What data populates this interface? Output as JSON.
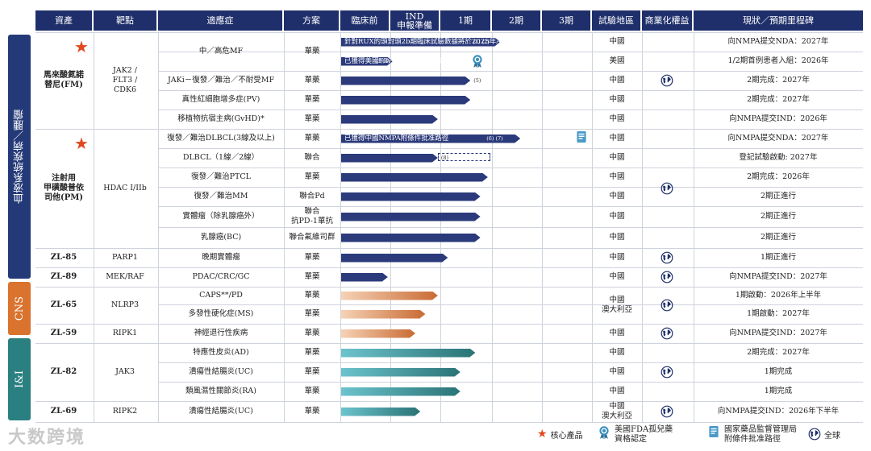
{
  "headers": [
    "資產",
    "靶點",
    "適應症",
    "方案",
    "臨床前",
    "IND\n申報準備",
    "1期",
    "2期",
    "3期",
    "試驗地區",
    "商業化權益",
    "現狀／預期里程碑"
  ],
  "categories": [
    {
      "label": "血液系統疾病／腫瘤",
      "color": "#243a78"
    },
    {
      "label": "CNS",
      "color": "#d9732e"
    },
    {
      "label": "I&I",
      "color": "#2a7f80"
    }
  ],
  "assets": {
    "fm": {
      "name": "馬來酸氮諾\n替尼(FM)",
      "target": "JAK2 /\nFLT3 /\nCDK6"
    },
    "pm": {
      "name": "注射用\n甲磺酸普依\n司他(PM)",
      "target": "HDAC I/IIb"
    },
    "zl85": {
      "name": "ZL-85",
      "target": "PARP1"
    },
    "zl89": {
      "name": "ZL-89",
      "target": "MEK/RAF"
    },
    "zl65": {
      "name": "ZL-65",
      "target": "NLRP3"
    },
    "zl59": {
      "name": "ZL-59",
      "target": "RIPK1"
    },
    "zl82": {
      "name": "ZL-82",
      "target": "JAK3"
    },
    "zl69": {
      "name": "ZL-69",
      "target": "RIPK2"
    }
  },
  "rows": [
    {
      "indication": "中／高危MF",
      "regimen": "單藥",
      "stage": 3.2,
      "region": "中國",
      "milestone": "向NMPA提交NDA：2027年",
      "bar_text": "針對RUX的頭對頭2b期臨床試驗數據將於2025年ASH上公佈",
      "note": "(1) (2)",
      "theme": "hem"
    },
    {
      "indication": "",
      "regimen": "",
      "stage": 1.05,
      "region": "美國",
      "milestone": "1/2期首例患者入組：2026年",
      "bar_text": "已獲得美國FDA的IND申報批准",
      "note": "(3)(4)",
      "theme": "hem"
    },
    {
      "indication": "JAKi－復發／難治／不耐受MF",
      "regimen": "單藥",
      "stage": 2.6,
      "region": "中國",
      "milestone": "2期完成：2027年",
      "bar_text": "",
      "note": "(5)",
      "theme": "hem"
    },
    {
      "indication": "真性紅細胞增多症(PV)",
      "regimen": "單藥",
      "stage": 2.6,
      "region": "中國",
      "milestone": "2期完成：2027年",
      "bar_text": "",
      "note": "",
      "theme": "hem"
    },
    {
      "indication": "移植物抗宿主病(GvHD)*",
      "regimen": "單藥",
      "stage": 1.95,
      "region": "中國",
      "milestone": "向NMPA提交IND：2026年",
      "bar_text": "",
      "note": "",
      "theme": "hem"
    },
    {
      "indication": "復發／難治DLBCL(3線及以上)",
      "regimen": "單藥",
      "stage": 3.6,
      "region": "中國",
      "milestone": "向NMPA提交NDA：2027年",
      "bar_text": "已獲得中國NMPA附條件批准路徑",
      "note": "(6) (7)",
      "theme": "hem"
    },
    {
      "indication": "DLBCL（1線／2線）",
      "regimen": "聯合",
      "stage": 1.95,
      "region": "中國",
      "milestone": "登記試驗啟動: 2027年",
      "bar_text": "",
      "note": "(8)",
      "theme": "hem"
    },
    {
      "indication": "復發／難治PTCL",
      "regimen": "單藥",
      "stage": 2.95,
      "region": "中國",
      "milestone": "2期完成：2026年",
      "bar_text": "",
      "note": "",
      "theme": "hem"
    },
    {
      "indication": "復發／難治MM",
      "regimen": "聯合Pd",
      "stage": 2.8,
      "region": "中國",
      "milestone": "2期正進行",
      "bar_text": "",
      "note": "",
      "theme": "hem"
    },
    {
      "indication": "實體瘤（除乳腺癌外）",
      "regimen": "聯合\n抗PD-1單抗",
      "stage": 2.8,
      "region": "中國",
      "milestone": "2期正進行",
      "bar_text": "",
      "note": "",
      "theme": "hem"
    },
    {
      "indication": "乳腺癌(BC)",
      "regimen": "聯合氟維司群",
      "stage": 2.8,
      "region": "中國",
      "milestone": "2期正進行",
      "bar_text": "",
      "note": "",
      "theme": "hem"
    },
    {
      "indication": "晚期實體瘤",
      "regimen": "單藥",
      "stage": 2.15,
      "region": "中國",
      "milestone": "1期正進行",
      "bar_text": "",
      "note": "",
      "theme": "hem"
    },
    {
      "indication": "PDAC/CRC/GC",
      "regimen": "單藥",
      "stage": 0.95,
      "region": "中國",
      "milestone": "向NMPA提交IND：2027年",
      "bar_text": "",
      "note": "",
      "theme": "hem"
    },
    {
      "indication": "CAPS**/PD",
      "regimen": "單藥",
      "stage": 1.95,
      "region": "中國\n澳大利亞",
      "milestone": "1期啟動：2026年上半年",
      "bar_text": "",
      "note": "",
      "theme": "cns"
    },
    {
      "indication": "多發性硬化症(MS)",
      "regimen": "單藥",
      "stage": 1.7,
      "region": "",
      "milestone": "1期啟動：2027年",
      "bar_text": "",
      "note": "",
      "theme": "cns"
    },
    {
      "indication": "神經退行性疾病",
      "regimen": "單藥",
      "stage": 1.5,
      "region": "中國",
      "milestone": "向NMPA提交IND：2027年",
      "bar_text": "",
      "note": "",
      "theme": "cns"
    },
    {
      "indication": "特應性皮炎(AD)",
      "regimen": "單藥",
      "stage": 2.7,
      "region": "中國",
      "milestone": "2期完成：2027年",
      "bar_text": "",
      "note": "",
      "theme": "ii"
    },
    {
      "indication": "潰瘍性結腸炎(UC)",
      "regimen": "單藥",
      "stage": 2.4,
      "region": "中國",
      "milestone": "1期完成",
      "bar_text": "",
      "note": "",
      "theme": "ii"
    },
    {
      "indication": "類風濕性關節炎(RA)",
      "regimen": "單藥",
      "stage": 2.4,
      "region": "中國",
      "milestone": "1期完成",
      "bar_text": "",
      "note": "",
      "theme": "ii"
    },
    {
      "indication": "潰瘍性結腸炎(UC)",
      "regimen": "單藥",
      "stage": 1.6,
      "region": "中國\n澳大利亞",
      "milestone": "向NMPA提交IND：2026年下半年",
      "bar_text": "",
      "note": "",
      "theme": "ii"
    }
  ],
  "dashed_extension": {
    "row": 6,
    "from_stage": 1.95,
    "to_stage": 3.0
  },
  "legend": {
    "core": "核心產品",
    "fda": "美國FDA孤兒藥\n資格認定",
    "nmpa": "國家藥品監督管理局\n附條件批准路徑",
    "global": "全球"
  },
  "watermark": "大数跨境",
  "colors": {
    "navy": "#1f2f6b",
    "hem_bar": "#2b3a7a",
    "cns_from": "#f6d2b6",
    "cns_to": "#c96b33",
    "ii_from": "#6cc3cd",
    "ii_to": "#2a7375",
    "star": "#e2471d"
  }
}
